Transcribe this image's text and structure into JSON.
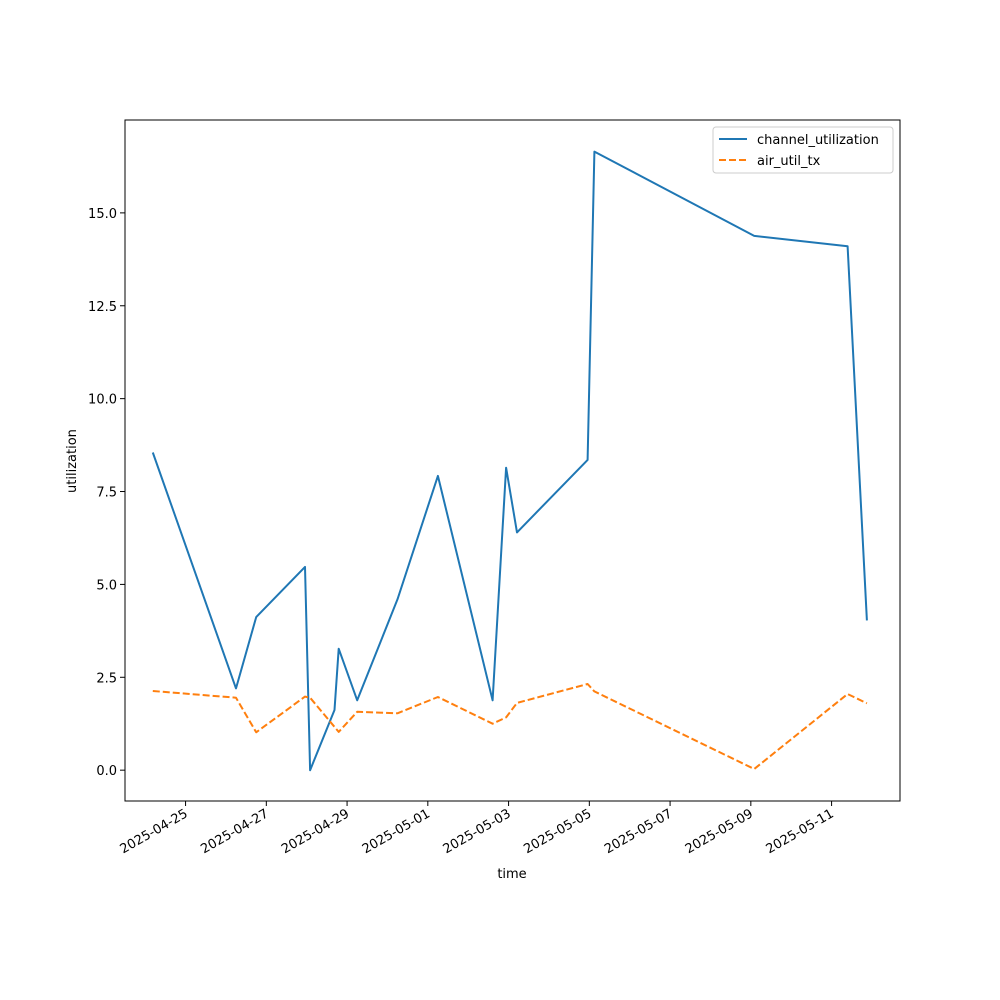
{
  "chart_data": {
    "type": "line",
    "title": "",
    "xlabel": "time",
    "ylabel": "utilization",
    "x_type": "date",
    "xlim": [
      "2025-04-23 12:00",
      "2025-05-12 16:40"
    ],
    "ylim": [
      -0.83,
      17.5
    ],
    "x_ticks": [
      "2025-04-25",
      "2025-04-27",
      "2025-04-29",
      "2025-05-01",
      "2025-05-03",
      "2025-05-05",
      "2025-05-07",
      "2025-05-09",
      "2025-05-11"
    ],
    "y_ticks": [
      0.0,
      2.5,
      5.0,
      7.5,
      10.0,
      12.5,
      15.0
    ],
    "y_tick_labels": [
      "0.0",
      "2.5",
      "5.0",
      "7.5",
      "10.0",
      "12.5",
      "15.0"
    ],
    "grid": false,
    "legend": "top-right",
    "series": [
      {
        "name": "channel_utilization",
        "color": "#1f77b4",
        "style": "solid",
        "points": [
          [
            "2025-04-24 04:30",
            8.55
          ],
          [
            "2025-04-26 06:00",
            2.2
          ],
          [
            "2025-04-26 18:00",
            4.12
          ],
          [
            "2025-04-27 23:00",
            5.47
          ],
          [
            "2025-04-28 02:00",
            0.0
          ],
          [
            "2025-04-28 16:30",
            1.62
          ],
          [
            "2025-04-28 19:00",
            3.27
          ],
          [
            "2025-04-29 06:00",
            1.88
          ],
          [
            "2025-04-30 06:00",
            4.6
          ],
          [
            "2025-05-01 06:00",
            7.92
          ],
          [
            "2025-05-02 14:30",
            1.88
          ],
          [
            "2025-05-02 22:30",
            8.14
          ],
          [
            "2025-05-03 05:00",
            6.4
          ],
          [
            "2025-05-04 23:00",
            8.35
          ],
          [
            "2025-05-05 03:00",
            16.65
          ],
          [
            "2025-05-09 02:00",
            14.38
          ],
          [
            "2025-05-11 09:30",
            14.1
          ],
          [
            "2025-05-11 21:00",
            4.03
          ]
        ]
      },
      {
        "name": "air_util_tx",
        "color": "#ff7f0e",
        "style": "dashed",
        "points": [
          [
            "2025-04-24 04:30",
            2.13
          ],
          [
            "2025-04-26 06:00",
            1.95
          ],
          [
            "2025-04-26 18:00",
            1.02
          ],
          [
            "2025-04-27 23:00",
            1.98
          ],
          [
            "2025-04-28 02:00",
            1.95
          ],
          [
            "2025-04-28 19:00",
            1.03
          ],
          [
            "2025-04-29 06:00",
            1.57
          ],
          [
            "2025-04-30 06:00",
            1.53
          ],
          [
            "2025-05-01 06:00",
            1.97
          ],
          [
            "2025-05-02 14:30",
            1.25
          ],
          [
            "2025-05-02 22:30",
            1.42
          ],
          [
            "2025-05-03 05:00",
            1.81
          ],
          [
            "2025-05-04 23:00",
            2.32
          ],
          [
            "2025-05-05 03:00",
            2.12
          ],
          [
            "2025-05-09 02:00",
            0.03
          ],
          [
            "2025-05-11 09:30",
            2.05
          ],
          [
            "2025-05-11 21:00",
            1.8
          ]
        ]
      }
    ]
  }
}
